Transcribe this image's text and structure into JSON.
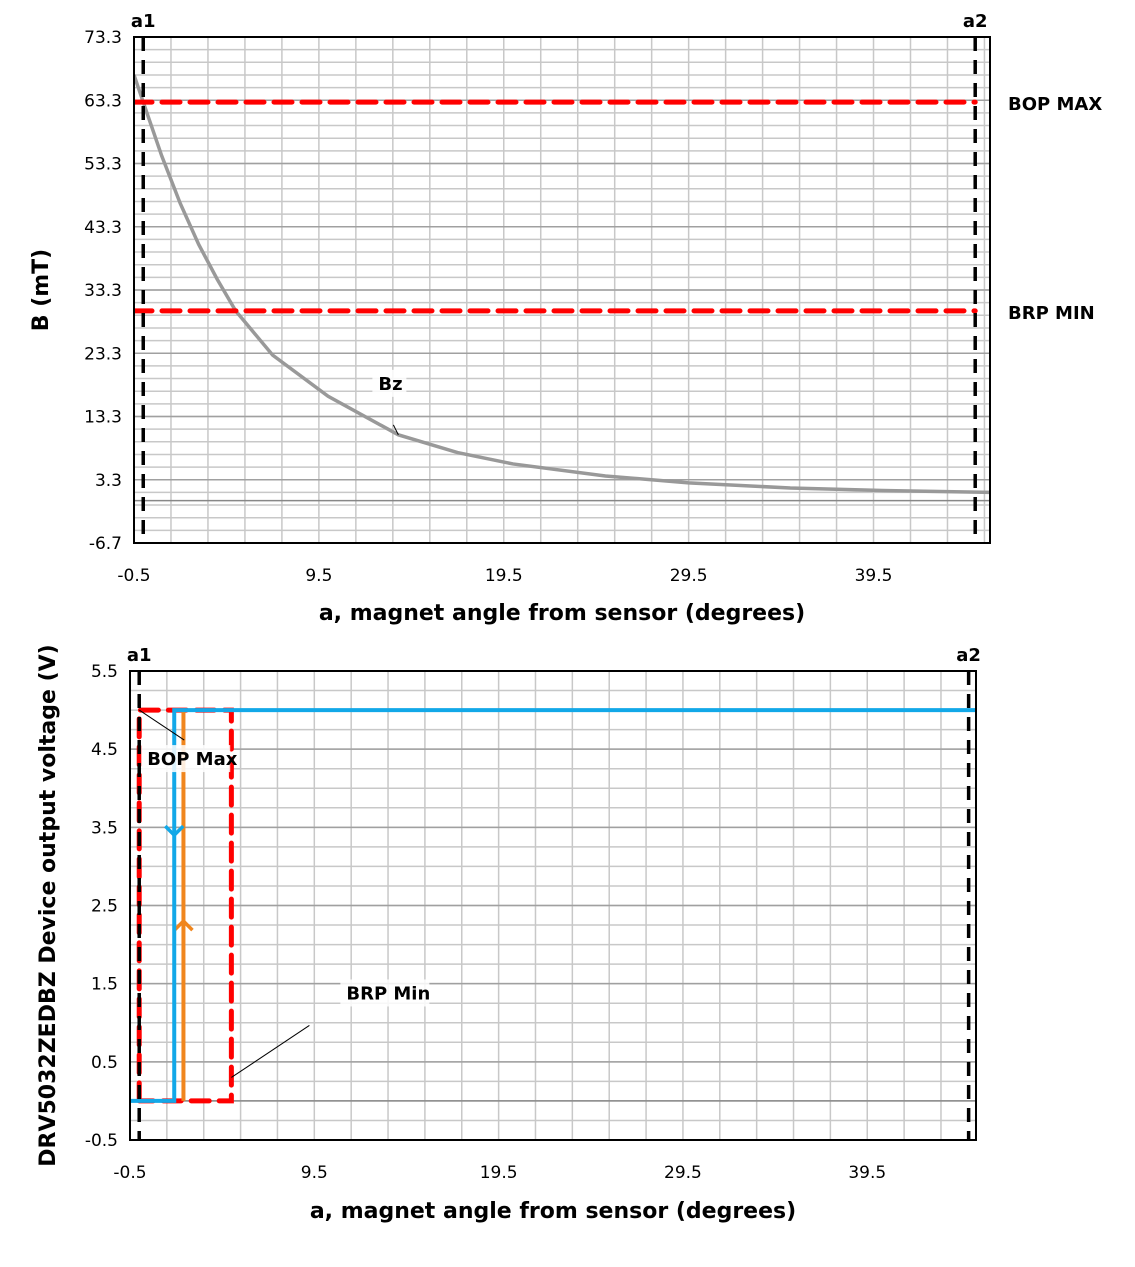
{
  "chart_data": [
    {
      "type": "line",
      "xlabel": "a, magnet angle from sensor (degrees)",
      "ylabel": "B (mT)",
      "xlim": [
        -0.5,
        45.8
      ],
      "ylim": [
        -6.7,
        73.3
      ],
      "xticks": [
        "-0.5",
        "9.5",
        "19.5",
        "29.5",
        "39.5"
      ],
      "xtick_values": [
        -0.5,
        9.5,
        19.5,
        29.5,
        39.5
      ],
      "yticks": [
        "-6.7",
        "3.3",
        "13.3",
        "23.3",
        "33.3",
        "43.3",
        "53.3",
        "63.3",
        "73.3"
      ],
      "ytick_values": [
        -6.7,
        3.3,
        13.3,
        23.3,
        33.3,
        43.3,
        53.3,
        63.3,
        73.3
      ],
      "grid": true,
      "series": [
        {
          "name": "Bz",
          "color": "#999999",
          "style": "solid",
          "x": [
            -0.5,
            0,
            1,
            2,
            3,
            4,
            5,
            7,
            10,
            13.8,
            17,
            20,
            25,
            29.5,
            35,
            40,
            45.8
          ],
          "y": [
            67.3,
            63.0,
            54.5,
            47.0,
            40.5,
            35.0,
            30.0,
            23.0,
            16.5,
            10.4,
            7.6,
            5.8,
            3.9,
            2.8,
            2.0,
            1.6,
            1.3
          ]
        },
        {
          "name": "BOP MAX",
          "color": "#ff0000",
          "style": "dashed",
          "x": [
            -0.5,
            45
          ],
          "y": [
            63,
            63
          ]
        },
        {
          "name": "BRP MIN",
          "color": "#ff0000",
          "style": "dashed",
          "x": [
            -0.5,
            45
          ],
          "y": [
            30,
            30
          ]
        }
      ],
      "vlines": [
        {
          "label": "a1",
          "x": 0,
          "color": "#000000"
        },
        {
          "label": "a2",
          "x": 45,
          "color": "#000000"
        }
      ],
      "annotations": [
        {
          "text": "Bz",
          "x": 13.8,
          "y": 10.4
        }
      ]
    },
    {
      "type": "line",
      "xlabel": "a, magnet angle from sensor (degrees)",
      "ylabel": "DRV5032ZEDBZ Device output voltage (V)",
      "xlim": [
        -0.5,
        45.4
      ],
      "ylim": [
        -0.5,
        5.5
      ],
      "xticks": [
        "-0.5",
        "9.5",
        "19.5",
        "29.5",
        "39.5"
      ],
      "xtick_values": [
        -0.5,
        9.5,
        19.5,
        29.5,
        39.5
      ],
      "yticks": [
        "-0.5",
        "0.5",
        "1.5",
        "2.5",
        "3.5",
        "4.5",
        "5.5"
      ],
      "ytick_values": [
        -0.5,
        0.5,
        1.5,
        2.5,
        3.5,
        4.5,
        5.5
      ],
      "grid": true,
      "series": [
        {
          "name": "BOP Max",
          "color": "#ff0000",
          "style": "dashed",
          "x": [
            0,
            0,
            5,
            5,
            0
          ],
          "y": [
            0,
            5,
            5,
            0,
            0
          ]
        },
        {
          "color": "#f0861e",
          "style": "solid",
          "arrow": "up",
          "x": [
            2.4,
            2.4
          ],
          "y": [
            0,
            5
          ]
        },
        {
          "color": "#12a8e8",
          "style": "solid",
          "arrow": "down",
          "x": [
            -0.5,
            1.9,
            1.9,
            45.4
          ],
          "y": [
            0,
            0,
            5,
            5
          ]
        }
      ],
      "vlines": [
        {
          "label": "a1",
          "x": 0,
          "color": "#000000"
        },
        {
          "label": "a2",
          "x": 45,
          "color": "#000000"
        }
      ],
      "annotations": [
        {
          "text": "BOP Max",
          "x": 0,
          "y": 5
        },
        {
          "text": "BRP Min",
          "x": 5,
          "y": 0.3
        }
      ]
    }
  ]
}
